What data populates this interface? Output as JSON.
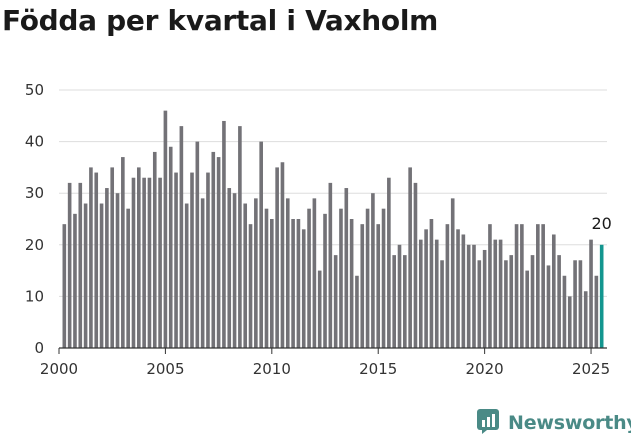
{
  "chart_data": {
    "type": "bar",
    "title": "Födda per kvartal i Vaxholm",
    "ylim": [
      0,
      50
    ],
    "y_ticks": [
      0,
      10,
      20,
      30,
      40,
      50
    ],
    "x_range": [
      2000,
      2025.75
    ],
    "x_ticks": [
      2000,
      2005,
      2010,
      2015,
      2020,
      2025
    ],
    "grid": "horizontal",
    "colors": {
      "bars": "#737277",
      "highlight": "#13968f",
      "grid": "#dddddd",
      "axis": "#333333"
    },
    "x": [
      2000.25,
      2000.5,
      2000.75,
      2001.0,
      2001.25,
      2001.5,
      2001.75,
      2002.0,
      2002.25,
      2002.5,
      2002.75,
      2003.0,
      2003.25,
      2003.5,
      2003.75,
      2004.0,
      2004.25,
      2004.5,
      2004.75,
      2005.0,
      2005.25,
      2005.5,
      2005.75,
      2006.0,
      2006.25,
      2006.5,
      2006.75,
      2007.0,
      2007.25,
      2007.5,
      2007.75,
      2008.0,
      2008.25,
      2008.5,
      2008.75,
      2009.0,
      2009.25,
      2009.5,
      2009.75,
      2010.0,
      2010.25,
      2010.5,
      2010.75,
      2011.0,
      2011.25,
      2011.5,
      2011.75,
      2012.0,
      2012.25,
      2012.5,
      2012.75,
      2013.0,
      2013.25,
      2013.5,
      2013.75,
      2014.0,
      2014.25,
      2014.5,
      2014.75,
      2015.0,
      2015.25,
      2015.5,
      2015.75,
      2016.0,
      2016.25,
      2016.5,
      2016.75,
      2017.0,
      2017.25,
      2017.5,
      2017.75,
      2018.0,
      2018.25,
      2018.5,
      2018.75,
      2019.0,
      2019.25,
      2019.5,
      2019.75,
      2020.0,
      2020.25,
      2020.5,
      2020.75,
      2021.0,
      2021.25,
      2021.5,
      2021.75,
      2022.0,
      2022.25,
      2022.5,
      2022.75,
      2023.0,
      2023.25,
      2023.5,
      2023.75,
      2024.0,
      2024.25,
      2024.5,
      2024.75,
      2025.0,
      2025.25,
      2025.5
    ],
    "values": [
      24,
      32,
      26,
      32,
      28,
      35,
      34,
      28,
      31,
      35,
      30,
      37,
      27,
      33,
      35,
      33,
      33,
      38,
      33,
      46,
      39,
      34,
      43,
      28,
      34,
      40,
      29,
      34,
      38,
      37,
      44,
      31,
      30,
      43,
      28,
      24,
      29,
      40,
      27,
      25,
      35,
      36,
      29,
      25,
      25,
      23,
      27,
      29,
      15,
      26,
      32,
      18,
      27,
      31,
      25,
      14,
      24,
      27,
      30,
      24,
      27,
      33,
      18,
      20,
      18,
      35,
      32,
      21,
      23,
      25,
      21,
      17,
      24,
      29,
      23,
      22,
      20,
      20,
      17,
      19,
      24,
      21,
      21,
      17,
      18,
      24,
      24,
      15,
      18,
      24,
      24,
      16,
      22,
      18,
      14,
      10,
      17,
      17,
      11,
      21,
      14,
      20
    ],
    "highlight_index": 101,
    "annotation": "20"
  },
  "brand": {
    "name": "Newsworthy",
    "icon": "newsworthy-logo-icon",
    "color": "#4a8a86"
  }
}
